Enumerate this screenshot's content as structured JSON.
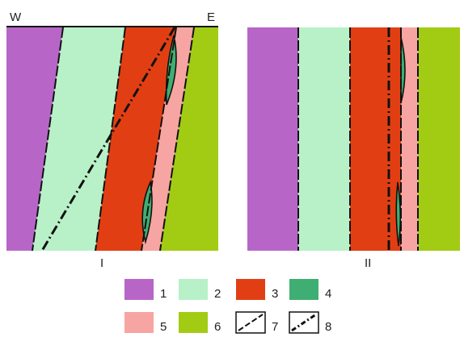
{
  "panel_I": {
    "label": "I",
    "west_label": "W",
    "east_label": "E"
  },
  "panel_II": {
    "label": "II"
  },
  "legend": [
    {
      "label": "1",
      "color": "#b766c8",
      "kind": "fill"
    },
    {
      "label": "2",
      "color": "#b8f1c8",
      "kind": "fill"
    },
    {
      "label": "3",
      "color": "#e13f13",
      "kind": "fill"
    },
    {
      "label": "4",
      "color": "#3fae72",
      "kind": "fill"
    },
    {
      "label": "5",
      "color": "#f7a5a2",
      "kind": "fill"
    },
    {
      "label": "6",
      "color": "#a2cc13",
      "kind": "fill"
    },
    {
      "label": "7",
      "color": "#ffffff",
      "kind": "dashed-line"
    },
    {
      "label": "8",
      "color": "#ffffff",
      "kind": "dash-dot-line"
    }
  ]
}
